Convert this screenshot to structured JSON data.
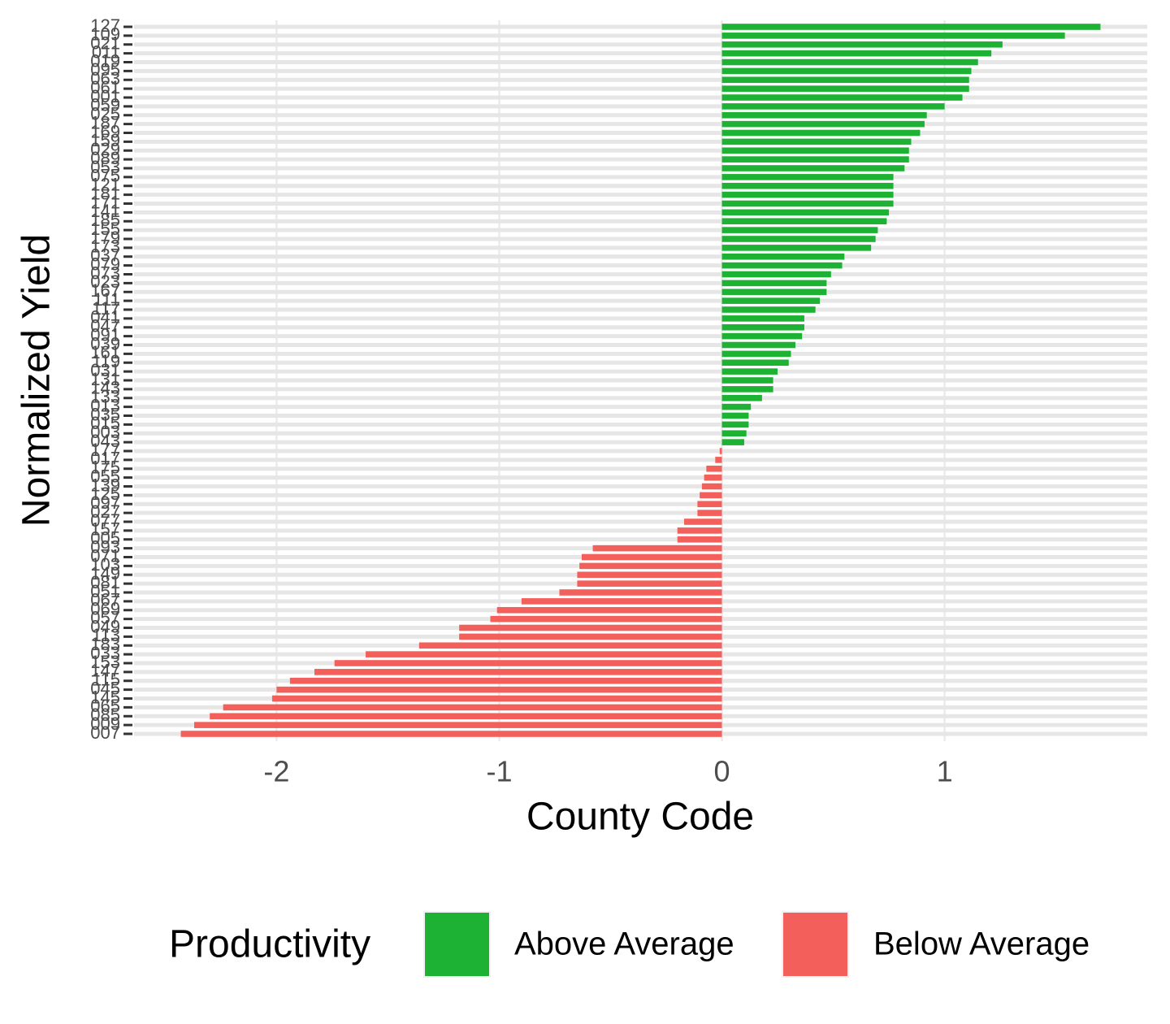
{
  "chart_data": {
    "type": "barh",
    "x_label": "County Code",
    "y_label": "Normalized Yield",
    "legend_title": "Productivity",
    "legend": "bottom",
    "grid": true,
    "categories": [
      "127",
      "109",
      "021",
      "011",
      "019",
      "095",
      "063",
      "061",
      "001",
      "059",
      "025",
      "187",
      "169",
      "159",
      "029",
      "089",
      "053",
      "075",
      "121",
      "181",
      "171",
      "141",
      "185",
      "155",
      "179",
      "173",
      "037",
      "079",
      "073",
      "023",
      "167",
      "111",
      "117",
      "041",
      "047",
      "091",
      "039",
      "161",
      "119",
      "031",
      "131",
      "143",
      "133",
      "013",
      "035",
      "015",
      "003",
      "043",
      "177",
      "017",
      "175",
      "055",
      "139",
      "125",
      "097",
      "027",
      "077",
      "157",
      "005",
      "093",
      "071",
      "103",
      "149",
      "081",
      "051",
      "067",
      "069",
      "057",
      "049",
      "113",
      "183",
      "033",
      "153",
      "147",
      "115",
      "045",
      "145",
      "065",
      "085",
      "009",
      "007"
    ],
    "series": [
      {
        "name": "Above Average",
        "color": "#1db233",
        "values": [
          1.7,
          1.54,
          1.26,
          1.21,
          1.15,
          1.12,
          1.11,
          1.11,
          1.08,
          1.0,
          0.92,
          0.91,
          0.89,
          0.85,
          0.84,
          0.84,
          0.82,
          0.77,
          0.77,
          0.77,
          0.77,
          0.75,
          0.74,
          0.7,
          0.69,
          0.67,
          0.55,
          0.54,
          0.49,
          0.47,
          0.47,
          0.44,
          0.42,
          0.37,
          0.37,
          0.36,
          0.33,
          0.31,
          0.3,
          0.25,
          0.23,
          0.23,
          0.18,
          0.13,
          0.12,
          0.12,
          0.11,
          0.1,
          null,
          null,
          null,
          null,
          null,
          null,
          null,
          null,
          null,
          null,
          null,
          null,
          null,
          null,
          null,
          null,
          null,
          null,
          null,
          null,
          null,
          null,
          null,
          null,
          null,
          null,
          null,
          null,
          null,
          null,
          null,
          null,
          null
        ]
      },
      {
        "name": "Below Average",
        "color": "#f3605c",
        "values": [
          null,
          null,
          null,
          null,
          null,
          null,
          null,
          null,
          null,
          null,
          null,
          null,
          null,
          null,
          null,
          null,
          null,
          null,
          null,
          null,
          null,
          null,
          null,
          null,
          null,
          null,
          null,
          null,
          null,
          null,
          null,
          null,
          null,
          null,
          null,
          null,
          null,
          null,
          null,
          null,
          null,
          null,
          null,
          null,
          null,
          null,
          null,
          null,
          -0.01,
          -0.03,
          -0.07,
          -0.08,
          -0.09,
          -0.1,
          -0.11,
          -0.11,
          -0.17,
          -0.2,
          -0.2,
          -0.58,
          -0.63,
          -0.64,
          -0.65,
          -0.65,
          -0.73,
          -0.9,
          -1.01,
          -1.04,
          -1.18,
          -1.18,
          -1.36,
          -1.6,
          -1.74,
          -1.83,
          -1.94,
          -2.0,
          -2.02,
          -2.24,
          -2.3,
          -2.37,
          -2.43
        ]
      }
    ],
    "xlim": [
      -2.64,
      1.91
    ],
    "xticks": [
      -2,
      -1,
      0,
      1
    ]
  }
}
